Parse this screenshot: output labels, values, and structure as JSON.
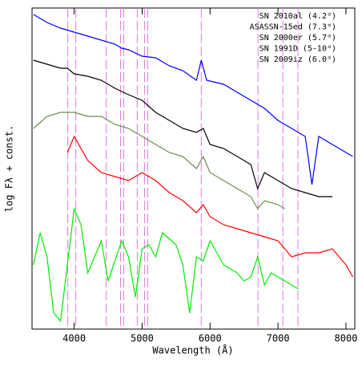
{
  "chart_data": {
    "type": "line",
    "xlabel": "Wavelength (Å)",
    "ylabel": "log Fλ + const.",
    "xlim": [
      3380,
      8130
    ],
    "ylim": [
      0,
      400
    ],
    "xticks": [
      4000,
      5000,
      6000,
      7000,
      8000
    ],
    "markers": {
      "color": "#e27ae2",
      "x": [
        3906,
        4024,
        4471,
        4682,
        4729,
        4929,
        5035,
        5082,
        5871,
        6706,
        7071,
        7294
      ]
    },
    "series": [
      {
        "name": "SN 2010al (4.2ᵈ)",
        "color": "#0000ff",
        "x": [
          3400,
          3600,
          3800,
          4000,
          4200,
          4400,
          4600,
          4700,
          4800,
          5000,
          5200,
          5400,
          5600,
          5800,
          5870,
          5950,
          6200,
          6400,
          6600,
          6700,
          6800,
          7000,
          7200,
          7400,
          7500,
          7600,
          7800,
          8000,
          8100
        ],
        "values": [
          392,
          382,
          375,
          370,
          365,
          360,
          355,
          350,
          348,
          340,
          338,
          328,
          322,
          310,
          335,
          310,
          305,
          295,
          285,
          280,
          275,
          260,
          250,
          240,
          180,
          240,
          230,
          220,
          215
        ]
      },
      {
        "name": "ASASSN-15ed (7.3ᵈ)",
        "color": "#000000",
        "x": [
          3400,
          3600,
          3800,
          3900,
          4000,
          4200,
          4400,
          4600,
          4800,
          5000,
          5200,
          5400,
          5600,
          5800,
          5900,
          6000,
          6200,
          6400,
          6600,
          6700,
          6800,
          7000,
          7200,
          7400,
          7600,
          7800
        ],
        "values": [
          335,
          330,
          325,
          325,
          318,
          315,
          310,
          300,
          292,
          285,
          270,
          260,
          250,
          245,
          250,
          230,
          225,
          215,
          205,
          175,
          195,
          185,
          175,
          170,
          165,
          165
        ]
      },
      {
        "name": "SN 2000er (5.7ᵈ)",
        "color": "#6b8c4f",
        "x": [
          3400,
          3600,
          3800,
          4000,
          4200,
          4400,
          4600,
          4800,
          5000,
          5200,
          5400,
          5600,
          5800,
          5900,
          6000,
          6200,
          6400,
          6600,
          6700,
          6800,
          7000,
          7100
        ],
        "values": [
          250,
          265,
          270,
          270,
          265,
          265,
          255,
          250,
          240,
          230,
          220,
          215,
          200,
          215,
          195,
          185,
          175,
          165,
          150,
          160,
          155,
          150
        ]
      },
      {
        "name": "SN 1991D (5-10ᵈ)",
        "color": "#ff0000",
        "x": [
          3900,
          4000,
          4200,
          4400,
          4600,
          4800,
          5000,
          5200,
          5400,
          5600,
          5800,
          5900,
          6000,
          6200,
          6400,
          6600,
          6800,
          7000,
          7200,
          7400,
          7600,
          7800,
          8000,
          8100
        ],
        "values": [
          220,
          240,
          210,
          195,
          190,
          185,
          195,
          185,
          170,
          160,
          145,
          155,
          140,
          130,
          125,
          120,
          115,
          110,
          90,
          95,
          95,
          100,
          80,
          65
        ]
      },
      {
        "name": "SN 2009iz (6.0ᵈ)",
        "color": "#00ee00",
        "x": [
          3400,
          3500,
          3600,
          3700,
          3800,
          3900,
          4000,
          4100,
          4200,
          4400,
          4500,
          4700,
          4800,
          4900,
          5000,
          5100,
          5200,
          5300,
          5500,
          5600,
          5700,
          5800,
          5900,
          6000,
          6200,
          6400,
          6500,
          6600,
          6700,
          6800,
          6900,
          7000,
          7200,
          7300
        ],
        "values": [
          80,
          120,
          90,
          20,
          10,
          80,
          150,
          130,
          70,
          110,
          60,
          110,
          90,
          40,
          100,
          105,
          90,
          120,
          105,
          80,
          20,
          90,
          85,
          110,
          80,
          70,
          60,
          65,
          90,
          55,
          70,
          65,
          55,
          50
        ]
      }
    ]
  }
}
